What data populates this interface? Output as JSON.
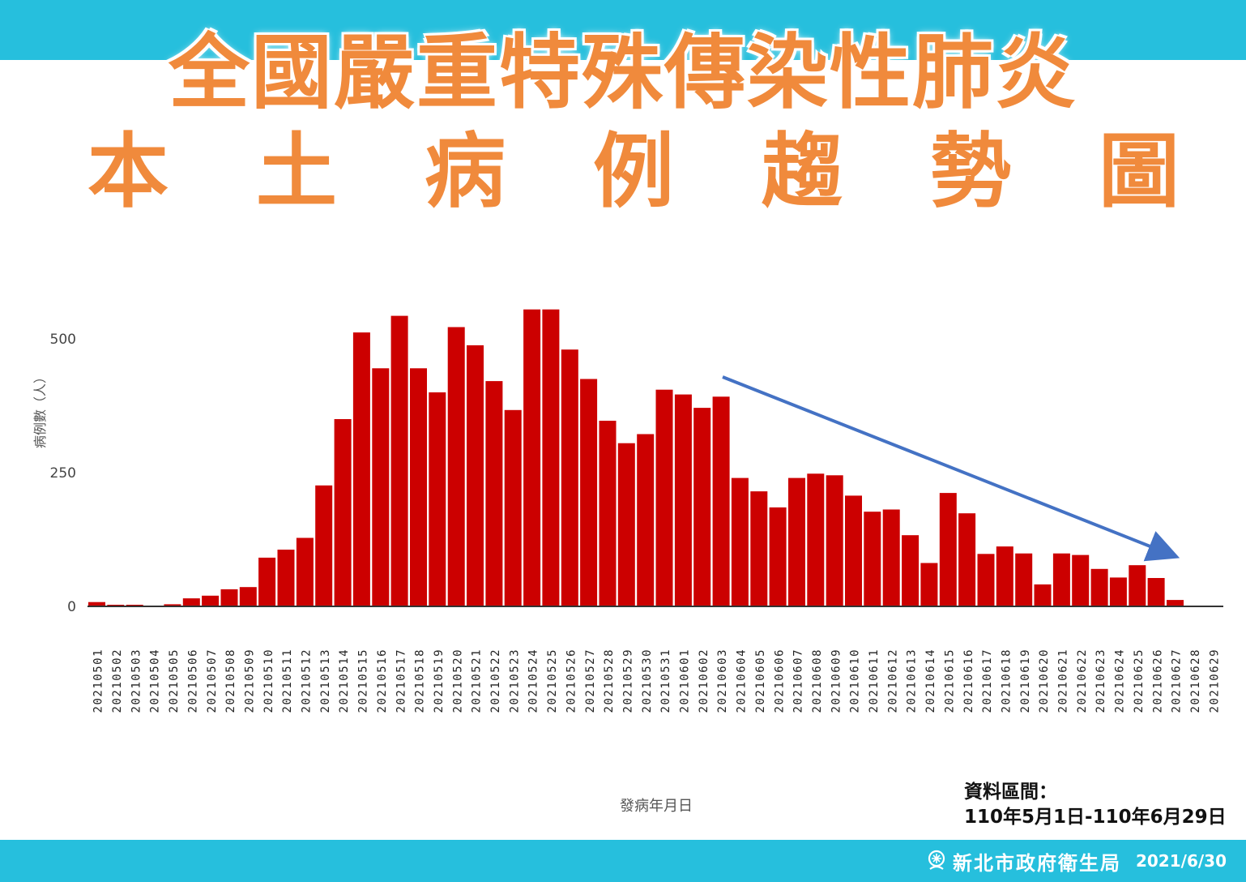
{
  "header": {
    "title_line1": "全國嚴重特殊傳染性肺炎",
    "title_line2": "本土病例趨勢圖"
  },
  "data_range": {
    "label": "資料區間：",
    "value": "110年5月1日-110年6月29日"
  },
  "footer": {
    "org": "新北市政府衛生局",
    "date": "2021/6/30",
    "logo_icon": "ntpc-health-logo-icon"
  },
  "colors": {
    "band": "#26bfdd",
    "title": "#f08a3c",
    "bar": "#cc0000",
    "trend_arrow": "#4472c4"
  },
  "chart_data": {
    "type": "bar",
    "xlabel": "發病年月日",
    "ylabel": "病例數（人）",
    "ylim": [
      0,
      550
    ],
    "yticks": [
      0,
      250,
      500
    ],
    "categories": [
      "20210501",
      "20210502",
      "20210503",
      "20210504",
      "20210505",
      "20210506",
      "20210507",
      "20210508",
      "20210509",
      "20210510",
      "20210511",
      "20210512",
      "20210513",
      "20210514",
      "20210515",
      "20210516",
      "20210517",
      "20210518",
      "20210519",
      "20210520",
      "20210521",
      "20210522",
      "20210523",
      "20210524",
      "20210525",
      "20210526",
      "20210527",
      "20210528",
      "20210529",
      "20210530",
      "20210531",
      "20210601",
      "20210602",
      "20210603",
      "20210604",
      "20210605",
      "20210606",
      "20210607",
      "20210608",
      "20210609",
      "20210610",
      "20210611",
      "20210612",
      "20210613",
      "20210614",
      "20210615",
      "20210616",
      "20210617",
      "20210618",
      "20210619",
      "20210620",
      "20210621",
      "20210622",
      "20210623",
      "20210624",
      "20210625",
      "20210626",
      "20210627",
      "20210628",
      "20210629"
    ],
    "values": [
      8,
      3,
      3,
      0,
      4,
      15,
      20,
      32,
      36,
      91,
      106,
      128,
      226,
      350,
      512,
      445,
      543,
      445,
      400,
      522,
      488,
      421,
      367,
      555,
      555,
      480,
      425,
      347,
      305,
      322,
      405,
      396,
      371,
      392,
      240,
      215,
      185,
      240,
      248,
      245,
      207,
      177,
      181,
      133,
      81,
      212,
      174,
      98,
      112,
      99,
      41,
      99,
      96,
      70,
      54,
      77,
      53,
      12,
      0,
      0
    ],
    "grid": false,
    "legend": "none",
    "annotation": "downward trend arrow"
  }
}
